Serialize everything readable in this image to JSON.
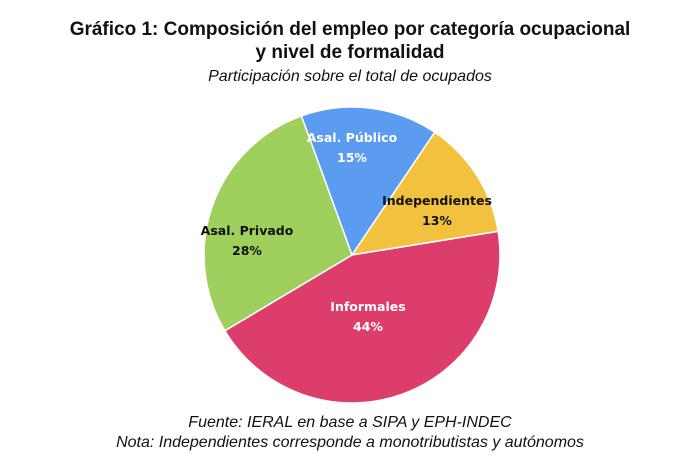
{
  "chart_data": {
    "type": "pie",
    "title_line1": "Gráfico 1: Composición del empleo por categoría ocupacional",
    "title_line2": "y nivel de formalidad",
    "subtitle": "Participación sobre el total de ocupados",
    "slices": [
      {
        "name": "Asal. Público",
        "value": 15,
        "label": "15%",
        "color": "#5b9bf0",
        "text_color": "#ffffff"
      },
      {
        "name": "Independientes",
        "value": 13,
        "label": "13%",
        "color": "#f2c23e",
        "text_color": "#111111"
      },
      {
        "name": "Informales",
        "value": 44,
        "label": "44%",
        "color": "#dd3d6a",
        "text_color": "#ffffff"
      },
      {
        "name": "Asal. Privado",
        "value": 28,
        "label": "28%",
        "color": "#9fd05e",
        "text_color": "#111111"
      }
    ],
    "legend": "none"
  },
  "footer": {
    "source": "Fuente: IERAL en base a SIPA y EPH-INDEC",
    "note": "Nota: Independientes corresponde a monotributistas y autónomos"
  }
}
